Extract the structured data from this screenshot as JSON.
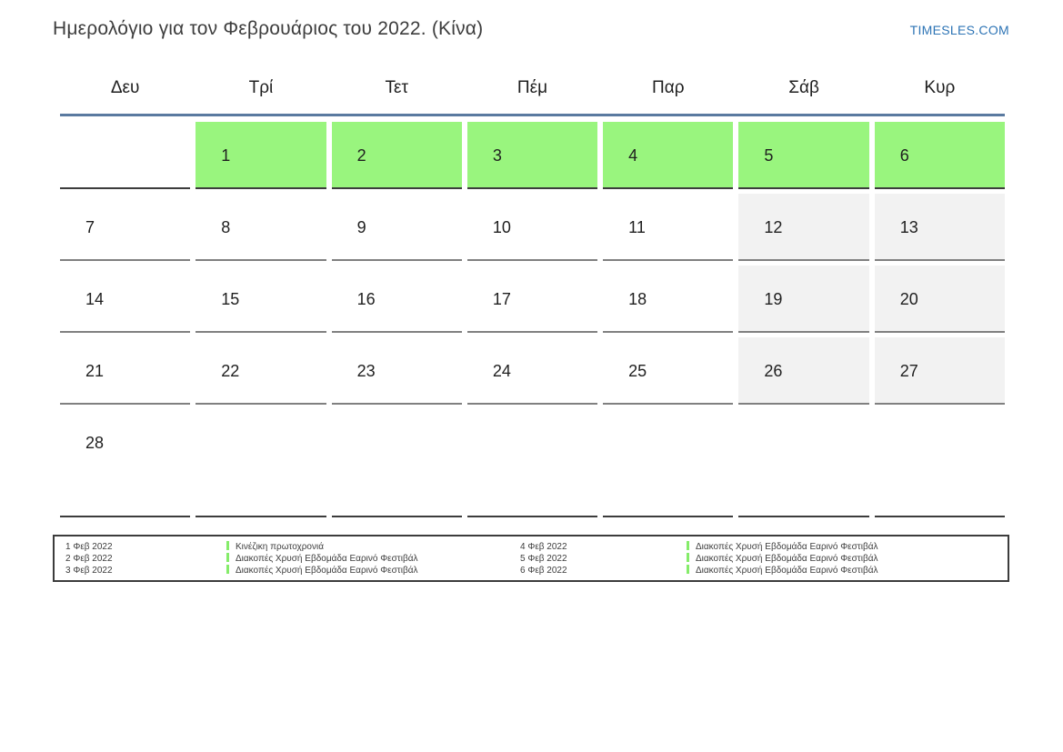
{
  "header": {
    "title": "Ημερολόγιο για τον Φεβρουάριος του 2022. (Κίνα)",
    "brand": "TIMESLES.COM"
  },
  "calendar": {
    "weekdays": [
      "Δευ",
      "Τρί",
      "Τετ",
      "Πέμ",
      "Παρ",
      "Σάβ",
      "Κυρ"
    ],
    "weeks": [
      {
        "cells": [
          {
            "day": "",
            "type": "empty"
          },
          {
            "day": "1",
            "type": "holiday"
          },
          {
            "day": "2",
            "type": "holiday"
          },
          {
            "day": "3",
            "type": "holiday"
          },
          {
            "day": "4",
            "type": "holiday"
          },
          {
            "day": "5",
            "type": "holiday"
          },
          {
            "day": "6",
            "type": "holiday"
          }
        ]
      },
      {
        "cells": [
          {
            "day": "7",
            "type": "normal"
          },
          {
            "day": "8",
            "type": "normal"
          },
          {
            "day": "9",
            "type": "normal"
          },
          {
            "day": "10",
            "type": "normal"
          },
          {
            "day": "11",
            "type": "normal"
          },
          {
            "day": "12",
            "type": "weekend"
          },
          {
            "day": "13",
            "type": "weekend"
          }
        ]
      },
      {
        "cells": [
          {
            "day": "14",
            "type": "normal"
          },
          {
            "day": "15",
            "type": "normal"
          },
          {
            "day": "16",
            "type": "normal"
          },
          {
            "day": "17",
            "type": "normal"
          },
          {
            "day": "18",
            "type": "normal"
          },
          {
            "day": "19",
            "type": "weekend"
          },
          {
            "day": "20",
            "type": "weekend"
          }
        ]
      },
      {
        "cells": [
          {
            "day": "21",
            "type": "normal"
          },
          {
            "day": "22",
            "type": "normal"
          },
          {
            "day": "23",
            "type": "normal"
          },
          {
            "day": "24",
            "type": "normal"
          },
          {
            "day": "25",
            "type": "normal"
          },
          {
            "day": "26",
            "type": "weekend"
          },
          {
            "day": "27",
            "type": "weekend"
          }
        ]
      },
      {
        "cells": [
          {
            "day": "28",
            "type": "normal"
          },
          {
            "day": "",
            "type": "empty"
          },
          {
            "day": "",
            "type": "empty"
          },
          {
            "day": "",
            "type": "empty"
          },
          {
            "day": "",
            "type": "empty"
          },
          {
            "day": "",
            "type": "empty"
          },
          {
            "day": "",
            "type": "empty"
          }
        ]
      }
    ]
  },
  "legend": {
    "items": [
      {
        "date": "1 Φεβ 2022",
        "name": "Κινέζικη πρωτοχρονιά"
      },
      {
        "date": "2 Φεβ 2022",
        "name": "Διακοπές Χρυσή Εβδομάδα Εαρινό Φεστιβάλ"
      },
      {
        "date": "3 Φεβ 2022",
        "name": "Διακοπές Χρυσή Εβδομάδα Εαρινό Φεστιβάλ"
      },
      {
        "date": "4 Φεβ 2022",
        "name": "Διακοπές Χρυσή Εβδομάδα Εαρινό Φεστιβάλ"
      },
      {
        "date": "5 Φεβ 2022",
        "name": "Διακοπές Χρυσή Εβδομάδα Εαρινό Φεστιβάλ"
      },
      {
        "date": "6 Φεβ 2022",
        "name": "Διακοπές Χρυσή Εβδομάδα Εαρινό Φεστιβάλ"
      }
    ]
  },
  "colors": {
    "holiday_cell": "#99f57e",
    "weekend_cell": "#f2f2f2",
    "header_line": "#5a7aa0",
    "brand_blue": "#2d74b5",
    "legend_marker": "#85ec6a",
    "dark_border": "#3c3c3c",
    "gray_border": "#808080"
  }
}
